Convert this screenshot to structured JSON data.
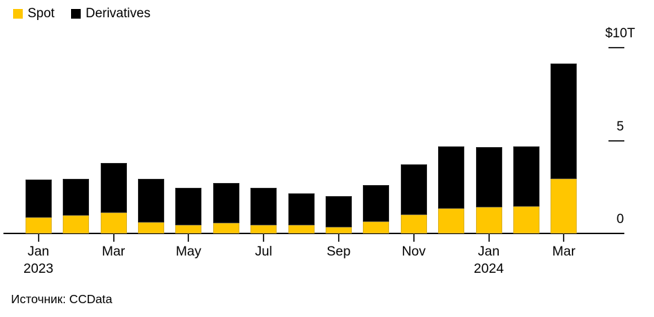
{
  "legend": {
    "items": [
      {
        "label": "Spot",
        "color": "#FFC600"
      },
      {
        "label": "Derivatives",
        "color": "#000000"
      }
    ]
  },
  "source": "Источник: CCData",
  "colors": {
    "spot": "#FFC600",
    "derivatives": "#000000",
    "axis": "#000000",
    "text": "#000000",
    "background": "#FFFFFF"
  },
  "chart_data": {
    "type": "bar",
    "stacked": true,
    "title": "",
    "unit": "USD trillions",
    "grid": false,
    "legend_position": "top-left",
    "categories": [
      "Jan 2023",
      "Feb 2023",
      "Mar 2023",
      "Apr 2023",
      "May 2023",
      "Jun 2023",
      "Jul 2023",
      "Aug 2023",
      "Sep 2023",
      "Oct 2023",
      "Nov 2023",
      "Dec 2023",
      "Jan 2024",
      "Feb 2024",
      "Mar 2024"
    ],
    "series": [
      {
        "name": "Spot",
        "color": "#FFC600",
        "values": [
          0.85,
          0.95,
          1.1,
          0.6,
          0.45,
          0.55,
          0.45,
          0.45,
          0.35,
          0.65,
          1.0,
          1.35,
          1.4,
          1.45,
          2.95
        ]
      },
      {
        "name": "Derivatives",
        "color": "#000000",
        "values": [
          2.05,
          2.0,
          2.7,
          2.35,
          2.0,
          2.15,
          2.0,
          1.7,
          1.65,
          1.95,
          2.7,
          3.35,
          3.25,
          3.25,
          6.2
        ]
      }
    ],
    "totals": [
      2.9,
      2.95,
      3.8,
      2.95,
      2.45,
      2.7,
      2.45,
      2.15,
      2.0,
      2.6,
      3.7,
      4.7,
      4.65,
      4.7,
      9.15
    ],
    "y_axis": {
      "min": 0,
      "max": 10,
      "ticks": [
        {
          "value": 0,
          "label": "0"
        },
        {
          "value": 5,
          "label": "5"
        },
        {
          "value": 10,
          "label": "$10T"
        }
      ]
    },
    "x_axis": {
      "ticks": [
        {
          "index": 0,
          "label": "Jan",
          "year": "2023"
        },
        {
          "index": 2,
          "label": "Mar"
        },
        {
          "index": 4,
          "label": "May"
        },
        {
          "index": 6,
          "label": "Jul"
        },
        {
          "index": 8,
          "label": "Sep"
        },
        {
          "index": 10,
          "label": "Nov"
        },
        {
          "index": 12,
          "label": "Jan",
          "year": "2024"
        },
        {
          "index": 14,
          "label": "Mar"
        }
      ]
    }
  }
}
